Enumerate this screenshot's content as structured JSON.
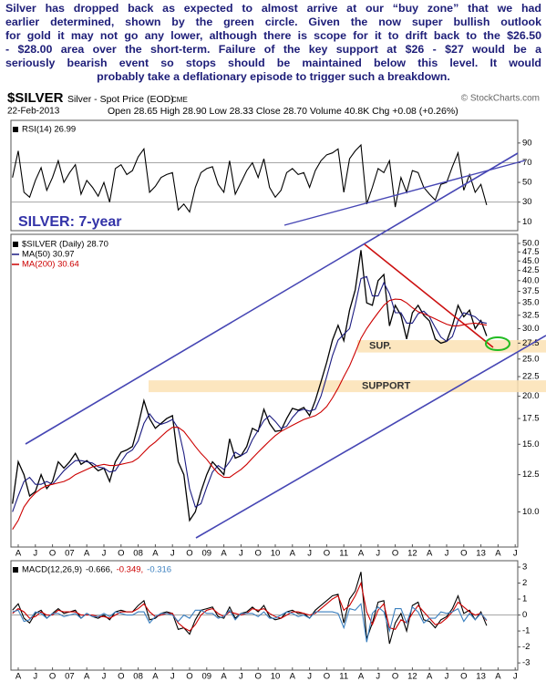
{
  "text_lines": [
    "Silver has dropped back as expected to almost arrive at our “buy zone” that we had",
    "earlier determined, shown by the green circle. Given the now super bullish outlook",
    "for gold it may not go any lower, although there is scope for it to drift back to the $26.50",
    "- $28.00 area over the short-term. Failure of the key support at $26 - $27 would be a",
    "seriously bearish event so stops should be maintained below this level. It would",
    "probably take a deflationary episode to trigger such a breakdown."
  ],
  "header": {
    "symbol": "$SILVER",
    "name": "Silver - Spot Price (EOD)",
    "exchange": "CME",
    "credit": "© StockCharts.com",
    "date": "22-Feb-2013",
    "quote": "Open 28.65 High 28.90 Low 28.33 Close 28.70 Volume 40.8K Chg +0.08 (+0.26%)",
    "annotation": "SILVER: 7-year"
  },
  "chart_data": [
    {
      "type": "line",
      "title": "RSI(14) 26.99",
      "ylim": [
        1,
        113
      ],
      "yticks": [
        10,
        30,
        50,
        70,
        90
      ],
      "levels": [
        30,
        70
      ],
      "series": [
        {
          "name": "RSI(14)",
          "color": "#000000",
          "values": [
            55,
            82,
            40,
            35,
            52,
            65,
            42,
            55,
            72,
            50,
            60,
            68,
            38,
            52,
            45,
            36,
            50,
            30,
            64,
            68,
            58,
            62,
            76,
            84,
            40,
            46,
            55,
            58,
            60,
            22,
            28,
            20,
            45,
            60,
            64,
            66,
            48,
            40,
            72,
            38,
            50,
            62,
            70,
            55,
            74,
            45,
            35,
            42,
            60,
            64,
            58,
            60,
            45,
            62,
            72,
            78,
            80,
            84,
            40,
            74,
            82,
            88,
            28,
            45,
            64,
            60,
            72,
            25,
            55,
            40,
            62,
            60,
            45,
            38,
            32,
            48,
            50,
            66,
            80,
            42,
            58,
            40,
            48,
            27
          ]
        }
      ]
    },
    {
      "type": "line",
      "log": true,
      "ylim": [
        8.1,
        52.8
      ],
      "yticks": [
        {
          "value": 50,
          "label": "50.0"
        },
        {
          "value": 47.5,
          "label": "47.5"
        },
        {
          "value": 45,
          "label": "45.0"
        },
        {
          "value": 42.5,
          "label": "42.5"
        },
        {
          "value": 40,
          "label": "40.0"
        },
        {
          "value": 37.5,
          "label": "37.5"
        },
        {
          "value": 35,
          "label": "35.0"
        },
        {
          "value": 32.5,
          "label": "32.5"
        },
        {
          "value": 30,
          "label": "30.0"
        },
        {
          "value": 27.5,
          "label": "27.5"
        },
        {
          "value": 25,
          "label": "25.0"
        },
        {
          "value": 22.5,
          "label": "22.5"
        },
        {
          "value": 20,
          "label": "20.0"
        },
        {
          "value": 17.5,
          "label": "17.5"
        },
        {
          "value": 15,
          "label": "15.0"
        },
        {
          "value": 12.5,
          "label": "12.5"
        },
        {
          "value": 10,
          "label": "10.0"
        }
      ],
      "xticks": [
        "A",
        "J",
        "O",
        "07",
        "A",
        "J",
        "O",
        "08",
        "A",
        "J",
        "O",
        "09",
        "A",
        "J",
        "O",
        "10",
        "A",
        "J",
        "O",
        "11",
        "A",
        "J",
        "O",
        "12",
        "A",
        "J",
        "O",
        "13",
        "A",
        "J"
      ],
      "bands": [
        {
          "label": "SUP.",
          "from": 26,
          "to": 28
        },
        {
          "label": "SUPPORT",
          "from": 20.5,
          "to": 22
        }
      ],
      "series": [
        {
          "name": "$SILVER (Daily) 28.70",
          "color": "#000000",
          "values": [
            10.5,
            13.5,
            12.5,
            11,
            11.3,
            12.5,
            11.5,
            12,
            13.5,
            13,
            13.5,
            14.2,
            13.3,
            13.6,
            13.2,
            12.8,
            13,
            12,
            13.5,
            14.3,
            14.5,
            14.8,
            16.8,
            19.5,
            17.5,
            16.5,
            17,
            17.5,
            17.8,
            13.5,
            12.5,
            9.5,
            10,
            11.3,
            12.5,
            13.5,
            13,
            12.5,
            15.5,
            13.8,
            14,
            14.8,
            16.5,
            16.2,
            18.5,
            17,
            16.2,
            16.3,
            17.5,
            18.6,
            18.4,
            18.7,
            17.8,
            19.5,
            21.8,
            24.5,
            28,
            30.6,
            27.9,
            33.5,
            37.8,
            48,
            35,
            34.5,
            40,
            41.5,
            30.5,
            34.5,
            32.5,
            28.2,
            33,
            34.5,
            32.5,
            31.4,
            28.2,
            27.5,
            27.8,
            30.5,
            34.5,
            32.2,
            33.5,
            30,
            31.5,
            28.7
          ]
        },
        {
          "name": "MA(50) 30.97",
          "color": "#1a1a80",
          "values": [
            10,
            11,
            12,
            12.3,
            11.8,
            11.8,
            12,
            11.8,
            12.3,
            12.8,
            13.2,
            13.6,
            13.6,
            13.5,
            13.4,
            13.1,
            13,
            12.7,
            12.8,
            13.5,
            14.2,
            14.5,
            15.3,
            17,
            18,
            17.2,
            16.9,
            17.1,
            17.4,
            16.5,
            14.2,
            11.5,
            10.3,
            10.5,
            11.6,
            12.7,
            13.2,
            12.9,
            13.5,
            14.3,
            14,
            14.3,
            15.4,
            16.3,
            17.3,
            17.8,
            17.2,
            16.5,
            16.7,
            17.6,
            18.3,
            18.5,
            18.3,
            18.5,
            20,
            22.5,
            25.5,
            28,
            29,
            30,
            34.5,
            40.5,
            41,
            36.5,
            36.5,
            39.5,
            37,
            33,
            33,
            31,
            31,
            32.8,
            33.3,
            32.2,
            30.2,
            28.5,
            27.8,
            28.6,
            31.5,
            33,
            32.6,
            32.2,
            31.2,
            30.97
          ]
        },
        {
          "name": "MA(200) 30.64",
          "color": "#cc0000",
          "values": [
            9,
            9.5,
            10.3,
            10.8,
            11.2,
            11.5,
            11.7,
            11.8,
            11.9,
            12,
            12.2,
            12.5,
            12.7,
            12.9,
            13.1,
            13.2,
            13.3,
            13.2,
            13.2,
            13.3,
            13.4,
            13.5,
            13.8,
            14.3,
            14.8,
            15.2,
            15.7,
            16.2,
            16.6,
            16.6,
            16.2,
            15.5,
            14.8,
            14.2,
            13.7,
            13.1,
            12.6,
            12.3,
            12.3,
            12.6,
            12.9,
            13.3,
            13.8,
            14.3,
            14.8,
            15.3,
            15.8,
            16.2,
            16.5,
            16.8,
            17.1,
            17.4,
            17.6,
            17.8,
            18.2,
            18.8,
            19.8,
            21,
            22.5,
            24,
            26,
            28.3,
            30,
            31.5,
            33,
            34.5,
            35.5,
            35.8,
            35.7,
            35,
            34,
            33.2,
            32.8,
            32.3,
            31.8,
            31.3,
            30.8,
            30.5,
            30.5,
            30.7,
            30.9,
            31,
            30.8,
            30.64
          ]
        }
      ]
    },
    {
      "type": "line",
      "title": "MACD(12,26,9)",
      "ylim": [
        -3.45,
        3.4
      ],
      "yticks": [
        3,
        2,
        1,
        0,
        -1,
        -2,
        -3
      ],
      "levels": [
        0
      ],
      "xticks": [
        "A",
        "J",
        "O",
        "07",
        "A",
        "J",
        "O",
        "08",
        "A",
        "J",
        "O",
        "09",
        "A",
        "J",
        "O",
        "10",
        "A",
        "J",
        "O",
        "11",
        "A",
        "J",
        "O",
        "12",
        "A",
        "J",
        "O",
        "13",
        "A",
        "J"
      ],
      "series": [
        {
          "name": "-0.666,",
          "color": "#000000",
          "values": [
            0.3,
            0.7,
            -0.2,
            -0.5,
            0.1,
            0.3,
            -0.2,
            0.1,
            0.4,
            0.1,
            0.2,
            0.3,
            -0.2,
            0.1,
            -0.1,
            -0.2,
            0,
            -0.3,
            0.2,
            0.3,
            0.2,
            0.2,
            0.6,
            0.9,
            -0.3,
            -0.2,
            0.1,
            0.2,
            0.1,
            -0.9,
            -0.8,
            -1.2,
            -0.3,
            0.3,
            0.4,
            0.5,
            -0.1,
            -0.2,
            0.5,
            -0.2,
            0.1,
            0.2,
            0.5,
            0.2,
            0.6,
            -0.1,
            -0.3,
            -0.2,
            0.2,
            0.3,
            0.1,
            0.1,
            -0.2,
            0.3,
            0.6,
            0.9,
            1.2,
            1.3,
            -0.5,
            1,
            1.5,
            2.7,
            -1.5,
            -0.5,
            0.8,
            0.9,
            -1.8,
            -0.5,
            0.1,
            -1,
            0.6,
            0.8,
            -0.3,
            -0.4,
            -0.8,
            -0.3,
            -0.1,
            0.4,
            1.2,
            0.1,
            0.3,
            -0.3,
            0.2,
            -0.666
          ]
        },
        {
          "name": "-0.349,",
          "color": "#cc0000",
          "values": [
            0.1,
            0.4,
            0.2,
            -0.2,
            -0.1,
            0.2,
            0,
            0,
            0.3,
            0.2,
            0.2,
            0.2,
            0,
            0,
            0,
            -0.1,
            -0.1,
            -0.2,
            0,
            0.2,
            0.2,
            0.2,
            0.4,
            0.7,
            0.2,
            -0.1,
            0,
            0.1,
            0.1,
            -0.5,
            -0.8,
            -1,
            -0.6,
            0,
            0.3,
            0.4,
            0.1,
            -0.1,
            0.2,
            0.1,
            0,
            0.1,
            0.4,
            0.3,
            0.4,
            0.1,
            -0.1,
            -0.2,
            0,
            0.2,
            0.2,
            0.1,
            0,
            0.1,
            0.4,
            0.7,
            1,
            1.2,
            0.3,
            0.6,
            1.2,
            2,
            0.2,
            -0.6,
            0.3,
            0.7,
            -0.8,
            -0.9,
            -0.3,
            -0.5,
            0.1,
            0.6,
            0.2,
            -0.2,
            -0.6,
            -0.5,
            -0.2,
            0.2,
            0.8,
            0.5,
            0.2,
            0,
            0.1,
            -0.349
          ]
        },
        {
          "name": "-0.316",
          "color": "#3a7fbf",
          "values": [
            0.2,
            0.3,
            -0.4,
            -0.3,
            0.2,
            0.1,
            -0.2,
            0.1,
            0.1,
            -0.1,
            0,
            0.1,
            -0.2,
            0.1,
            -0.1,
            -0.1,
            0.1,
            -0.1,
            0.2,
            0.1,
            0,
            0,
            0.2,
            0.2,
            -0.5,
            -0.1,
            0.1,
            0.1,
            0,
            -0.4,
            0,
            -0.2,
            0.3,
            0.3,
            0.1,
            0.1,
            -0.2,
            -0.1,
            0.3,
            -0.3,
            0.1,
            0.1,
            0.1,
            -0.1,
            0.2,
            -0.2,
            -0.2,
            0,
            0.2,
            0.1,
            -0.1,
            0,
            -0.2,
            0.2,
            0.2,
            0.2,
            0.2,
            0.1,
            -0.8,
            0.4,
            0.3,
            0.7,
            -1.7,
            0.1,
            0.5,
            0.2,
            -1,
            0.4,
            0.4,
            -0.5,
            0.5,
            0.2,
            -0.5,
            -0.2,
            -0.2,
            0.2,
            0.1,
            0.2,
            0.4,
            -0.4,
            0.1,
            -0.3,
            0.1,
            -0.316
          ]
        }
      ]
    }
  ]
}
